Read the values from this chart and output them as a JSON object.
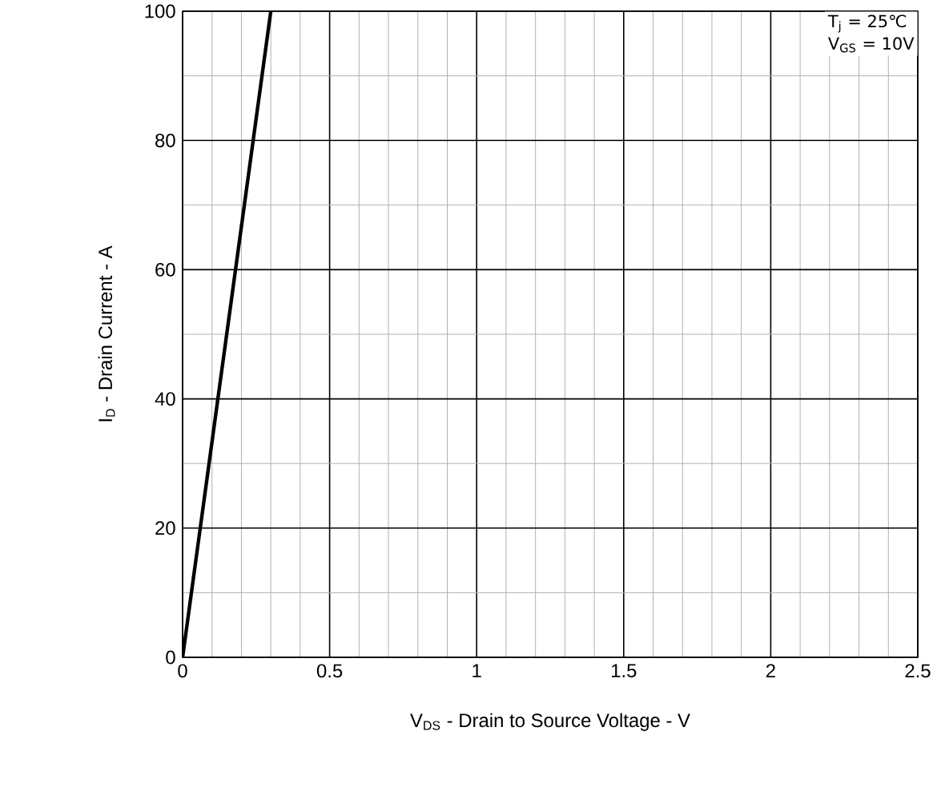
{
  "chart_data": {
    "type": "line",
    "xlabel": "V$_{DS}$ - Drain to Source Voltage - V",
    "ylabel": "I$_{D}$ - Drain Current - A",
    "x": [
      0,
      0.3
    ],
    "series": [
      {
        "color": "#000000",
        "values": [
          0,
          100
        ]
      }
    ],
    "xlim": [
      0,
      2.5
    ],
    "ylim": [
      0,
      100
    ],
    "xticks": [
      0,
      0.5,
      1,
      1.5,
      2,
      2.5
    ],
    "yticks": [
      0,
      20,
      40,
      60,
      80,
      100
    ],
    "grid": true,
    "line_style": "solid",
    "annotations": [
      "T$_{j}$ = 25℃",
      "V$_{GS}$ = 10V"
    ]
  }
}
